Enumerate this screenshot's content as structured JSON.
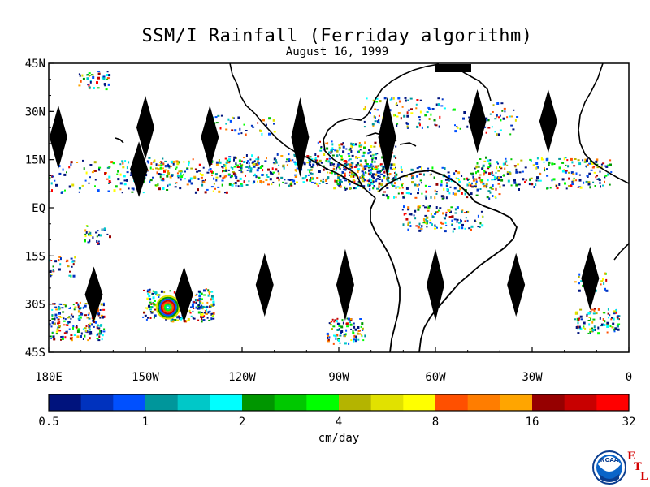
{
  "title": "SSM/I Rainfall (Ferriday algorithm)",
  "subtitle": "August 16, 1999",
  "map": {
    "lat_range": [
      -45,
      45
    ],
    "lon_range": [
      -180,
      0
    ],
    "lat_ticks": [
      {
        "value": 45,
        "label": "45N"
      },
      {
        "value": 30,
        "label": "30N"
      },
      {
        "value": 15,
        "label": "15N"
      },
      {
        "value": 0,
        "label": "EQ"
      },
      {
        "value": -15,
        "label": "15S"
      },
      {
        "value": -30,
        "label": "30S"
      },
      {
        "value": -45,
        "label": "45S"
      }
    ],
    "lon_ticks": [
      {
        "value": -180,
        "label": "180E"
      },
      {
        "value": -150,
        "label": "150W"
      },
      {
        "value": -120,
        "label": "120W"
      },
      {
        "value": -90,
        "label": "90W"
      },
      {
        "value": -60,
        "label": "60W"
      },
      {
        "value": -30,
        "label": "30W"
      },
      {
        "value": 0,
        "label": "0"
      }
    ],
    "coastline_color": "#000000",
    "swath_gap_color": "#000000"
  },
  "colorbar": {
    "unit_label": "cm/day",
    "tick_labels": [
      "0.5",
      "1",
      "2",
      "4",
      "8",
      "16",
      "32"
    ],
    "colors": [
      "#00137d",
      "#0032be",
      "#0050ff",
      "#00969b",
      "#00c8c8",
      "#00ffff",
      "#009600",
      "#00c800",
      "#00ff00",
      "#b4b400",
      "#e1e100",
      "#ffff00",
      "#ff5000",
      "#ff7d00",
      "#ffa500",
      "#960000",
      "#c80000",
      "#ff0000"
    ]
  },
  "logo": {
    "text": "NOAA",
    "letters": [
      "E",
      "T",
      "L"
    ]
  }
}
